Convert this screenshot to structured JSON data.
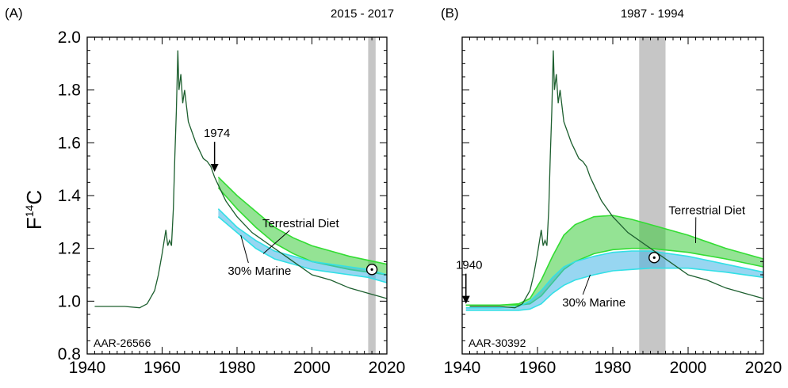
{
  "figure": {
    "ylabel": "F",
    "ylabel_superscript": "14",
    "ylabel_suffix": "C"
  },
  "chart_data": [
    {
      "type": "line",
      "panel_label": "(A)",
      "sample_id": "AAR-26566",
      "xlim": [
        1940,
        2020
      ],
      "ylim": [
        0.8,
        2.0
      ],
      "x_ticks": [
        1940,
        1960,
        1980,
        2000,
        2020
      ],
      "y_ticks": [
        0.8,
        1.0,
        1.2,
        1.4,
        1.6,
        1.8,
        2.0
      ],
      "shaded_range": {
        "label": "2015 - 2017",
        "x": [
          2015,
          2017
        ]
      },
      "arrow_annotation": {
        "label": "1974",
        "x": 1974,
        "y": 1.49
      },
      "point": {
        "x": 2016,
        "y": 1.12
      },
      "series": [
        {
          "kind": "line",
          "color": "#1d5f2f",
          "x": [
            1942,
            1950,
            1954,
            1956,
            1958,
            1959,
            1960,
            1961,
            1961.5,
            1962,
            1962.5,
            1963,
            1963.4,
            1963.8,
            1964.2,
            1964.5,
            1965,
            1965.5,
            1966,
            1967,
            1968,
            1969,
            1970,
            1971,
            1972,
            1973,
            1974,
            1975,
            1976,
            1977,
            1978,
            1980,
            1982,
            1984,
            1986,
            1988,
            1990,
            1992,
            1995,
            2000,
            2005,
            2010,
            2015,
            2020
          ],
          "y": [
            0.98,
            0.98,
            0.975,
            0.99,
            1.04,
            1.1,
            1.18,
            1.27,
            1.21,
            1.23,
            1.21,
            1.35,
            1.55,
            1.72,
            1.95,
            1.8,
            1.86,
            1.75,
            1.8,
            1.68,
            1.64,
            1.6,
            1.57,
            1.54,
            1.53,
            1.51,
            1.47,
            1.44,
            1.41,
            1.38,
            1.36,
            1.32,
            1.29,
            1.26,
            1.24,
            1.22,
            1.2,
            1.18,
            1.15,
            1.1,
            1.08,
            1.05,
            1.03,
            1.01
          ]
        },
        {
          "kind": "band",
          "name": "Terrestrial Diet",
          "fill": "#3dcc3d",
          "stroke": "#33dd33",
          "x": [
            1975,
            1980,
            1985,
            1990,
            1995,
            2000,
            2005,
            2010,
            2015,
            2020
          ],
          "upper": [
            1.47,
            1.4,
            1.34,
            1.28,
            1.24,
            1.21,
            1.19,
            1.17,
            1.155,
            1.14
          ],
          "lower": [
            1.43,
            1.35,
            1.28,
            1.22,
            1.18,
            1.15,
            1.135,
            1.12,
            1.11,
            1.1
          ]
        },
        {
          "kind": "band",
          "name": "30% Marine",
          "fill": "#41b5e6",
          "stroke": "#33e0e6",
          "x": [
            1975,
            1980,
            1985,
            1990,
            1995,
            2000,
            2005,
            2010,
            2015,
            2020
          ],
          "upper": [
            1.35,
            1.28,
            1.23,
            1.19,
            1.17,
            1.15,
            1.14,
            1.13,
            1.12,
            1.1
          ],
          "lower": [
            1.32,
            1.26,
            1.2,
            1.16,
            1.14,
            1.12,
            1.11,
            1.1,
            1.09,
            1.07
          ]
        }
      ],
      "band_labels": [
        {
          "name": "Terrestrial Diet",
          "text_x": 1997,
          "text_y": 1.28,
          "tip_x": 1987,
          "tip_y": 1.18
        },
        {
          "name": "30% Marine",
          "text_x": 1986,
          "text_y": 1.1,
          "tip_x": 1981,
          "tip_y": 1.25
        }
      ]
    },
    {
      "type": "line",
      "panel_label": "(B)",
      "sample_id": "AAR-30392",
      "xlim": [
        1940,
        2020
      ],
      "ylim": [
        0.8,
        2.0
      ],
      "x_ticks": [
        1940,
        1960,
        1980,
        2000,
        2020
      ],
      "y_ticks": [
        0.8,
        1.0,
        1.2,
        1.4,
        1.6,
        1.8,
        2.0
      ],
      "shaded_range": {
        "label": "1987 - 1994",
        "x": [
          1987,
          1994
        ]
      },
      "arrow_annotation": {
        "label": "1940",
        "x": 1941,
        "y": 0.99
      },
      "point": {
        "x": 1991,
        "y": 1.165
      },
      "series": [
        {
          "kind": "line",
          "color": "#1d5f2f",
          "x": [
            1942,
            1950,
            1954,
            1956,
            1958,
            1959,
            1960,
            1961,
            1961.5,
            1962,
            1962.5,
            1963,
            1963.4,
            1963.8,
            1964.2,
            1964.5,
            1965,
            1965.5,
            1966,
            1967,
            1968,
            1969,
            1970,
            1971,
            1972,
            1973,
            1974,
            1975,
            1976,
            1977,
            1978,
            1980,
            1982,
            1984,
            1986,
            1988,
            1990,
            1992,
            1995,
            2000,
            2005,
            2010,
            2015,
            2020
          ],
          "y": [
            0.98,
            0.98,
            0.975,
            0.99,
            1.04,
            1.1,
            1.18,
            1.27,
            1.21,
            1.23,
            1.21,
            1.35,
            1.55,
            1.72,
            1.95,
            1.8,
            1.86,
            1.75,
            1.8,
            1.68,
            1.64,
            1.6,
            1.57,
            1.54,
            1.53,
            1.51,
            1.47,
            1.44,
            1.41,
            1.38,
            1.36,
            1.32,
            1.29,
            1.26,
            1.24,
            1.22,
            1.2,
            1.18,
            1.15,
            1.1,
            1.08,
            1.05,
            1.03,
            1.01
          ]
        },
        {
          "kind": "band",
          "name": "Terrestrial Diet",
          "fill": "#3dcc3d",
          "stroke": "#33dd33",
          "x": [
            1941,
            1950,
            1955,
            1958,
            1961,
            1964,
            1967,
            1970,
            1975,
            1980,
            1985,
            1990,
            2000,
            2010,
            2020
          ],
          "upper": [
            0.985,
            0.985,
            0.99,
            1.01,
            1.08,
            1.17,
            1.25,
            1.29,
            1.32,
            1.325,
            1.31,
            1.29,
            1.25,
            1.2,
            1.16
          ],
          "lower": [
            0.985,
            0.985,
            0.985,
            0.99,
            1.02,
            1.07,
            1.12,
            1.15,
            1.18,
            1.195,
            1.2,
            1.2,
            1.185,
            1.16,
            1.13
          ]
        },
        {
          "kind": "band",
          "name": "30% Marine",
          "fill": "#41b5e6",
          "stroke": "#33e0e6",
          "x": [
            1941,
            1950,
            1955,
            1958,
            1961,
            1964,
            1967,
            1970,
            1975,
            1980,
            1985,
            1990,
            2000,
            2010,
            2020
          ],
          "upper": [
            0.975,
            0.975,
            0.98,
            1.0,
            1.04,
            1.09,
            1.13,
            1.15,
            1.17,
            1.185,
            1.19,
            1.19,
            1.17,
            1.14,
            1.11
          ],
          "lower": [
            0.965,
            0.965,
            0.965,
            0.97,
            0.99,
            1.03,
            1.06,
            1.08,
            1.1,
            1.115,
            1.12,
            1.125,
            1.125,
            1.11,
            1.09
          ]
        }
      ],
      "band_labels": [
        {
          "name": "Terrestrial Diet",
          "text_x": 2005,
          "text_y": 1.33,
          "tip_x": 2002,
          "tip_y": 1.22
        },
        {
          "name": "30% Marine",
          "text_x": 1975,
          "text_y": 0.98,
          "tip_x": 1974,
          "tip_y": 1.1
        }
      ]
    }
  ]
}
